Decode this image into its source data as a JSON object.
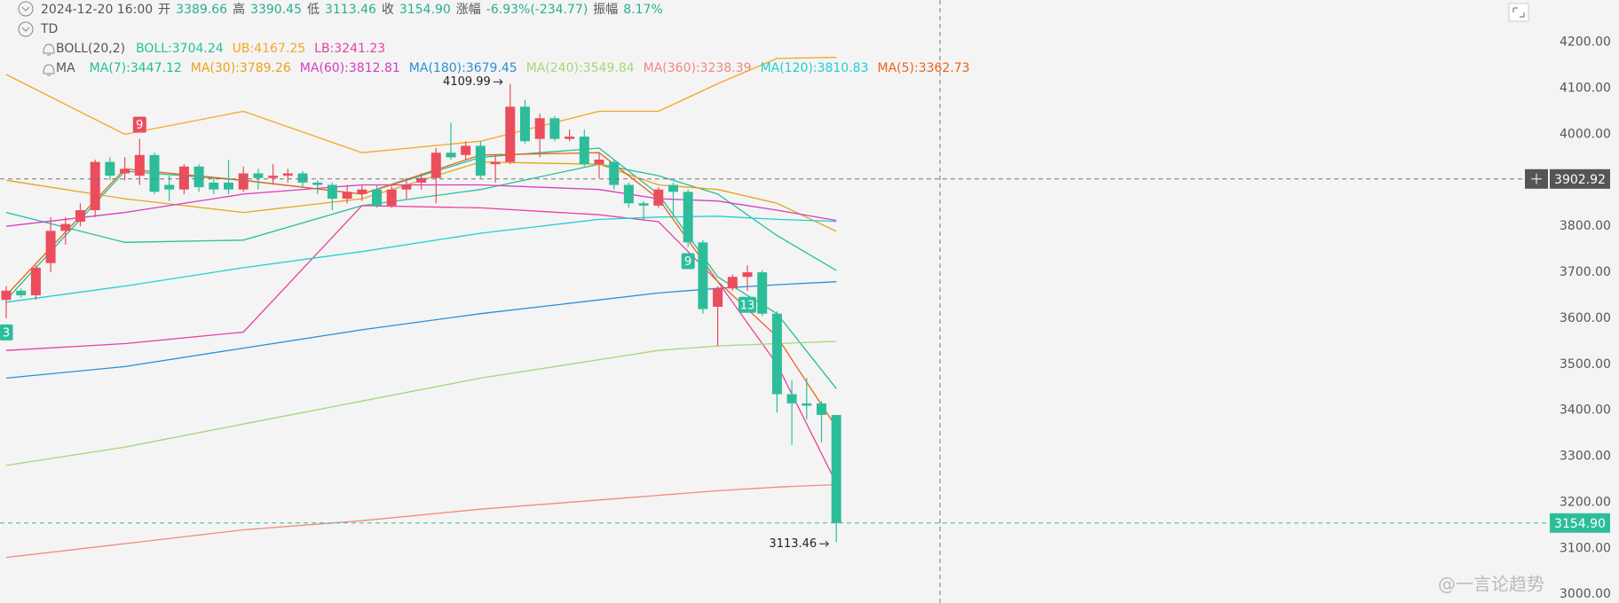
{
  "chart_data": {
    "type": "candlestick",
    "header": {
      "time": "2024-12-20 16:00",
      "items": [
        {
          "label": "开",
          "value": "3389.66"
        },
        {
          "label": "高",
          "value": "3390.45"
        },
        {
          "label": "低",
          "value": "3113.46"
        },
        {
          "label": "收",
          "value": "3154.90"
        },
        {
          "label": "涨幅",
          "value": "-6.93%(-234.77)"
        },
        {
          "label": "振幅",
          "value": "8.17%"
        }
      ],
      "value_color": "#26b08f"
    },
    "td_label": "TD",
    "boll_label": "BOLL(20,2)",
    "ma_label": "MA",
    "up_color": "#eb4d5c",
    "down_color": "#2ebd9b",
    "candles": {
      "open": [
        3640,
        3660,
        3650,
        3720,
        3790,
        3810,
        3835,
        3940,
        3915,
        3910,
        3955,
        3890,
        3880,
        3930,
        3895,
        3895,
        3880,
        3915,
        3905,
        3910,
        3915,
        3895,
        3890,
        3860,
        3870,
        3880,
        3845,
        3880,
        3895,
        3905,
        3960,
        3955,
        3975,
        3935,
        3940,
        4060,
        3990,
        4035,
        3990,
        3995,
        3935,
        3940,
        3890,
        3850,
        3845,
        3890,
        3875,
        3765,
        3625,
        3665,
        3690,
        3700,
        3610,
        3435,
        3415,
        3415,
        3389.66
      ],
      "high": [
        3670,
        3665,
        3715,
        3820,
        3820,
        3850,
        3945,
        3950,
        3950,
        3990,
        3960,
        3910,
        3935,
        3935,
        3905,
        3945,
        3930,
        3925,
        3935,
        3925,
        3920,
        3900,
        3895,
        3890,
        3890,
        3890,
        3890,
        3905,
        3915,
        3970,
        4025,
        3985,
        3985,
        3955,
        4109.99,
        4075,
        4045,
        4040,
        4010,
        4010,
        3960,
        3945,
        3895,
        3855,
        3885,
        3895,
        3880,
        3770,
        3670,
        3695,
        3715,
        3705,
        3615,
        3465,
        3470,
        3420,
        3390.45
      ],
      "low": [
        3600,
        3645,
        3640,
        3700,
        3760,
        3800,
        3820,
        3900,
        3900,
        3890,
        3870,
        3855,
        3870,
        3875,
        3870,
        3870,
        3875,
        3880,
        3890,
        3895,
        3885,
        3870,
        3835,
        3850,
        3855,
        3840,
        3840,
        3860,
        3880,
        3850,
        3945,
        3945,
        3905,
        3895,
        3935,
        3980,
        3950,
        3985,
        3985,
        3930,
        3905,
        3880,
        3840,
        3815,
        3840,
        3820,
        3755,
        3610,
        3540,
        3660,
        3660,
        3605,
        3395,
        3325,
        3380,
        3330,
        3113.46
      ],
      "close": [
        3660,
        3650,
        3710,
        3790,
        3805,
        3835,
        3940,
        3910,
        3925,
        3955,
        3875,
        3880,
        3930,
        3885,
        3880,
        3880,
        3915,
        3905,
        3910,
        3915,
        3895,
        3890,
        3860,
        3875,
        3880,
        3845,
        3880,
        3890,
        3905,
        3960,
        3950,
        3975,
        3910,
        3940,
        4060,
        3985,
        4035,
        3990,
        3995,
        3935,
        3945,
        3890,
        3850,
        3845,
        3880,
        3875,
        3765,
        3620,
        3665,
        3690,
        3700,
        3610,
        3435,
        3415,
        3410,
        3390,
        3154.9
      ]
    },
    "lines": [
      {
        "name": "BOLL:3704.24",
        "group": "boll",
        "color": "#26c09c",
        "x": [
          0,
          8,
          16,
          24,
          32,
          40,
          44,
          48,
          52,
          56
        ],
        "values": [
          3830,
          3765,
          3770,
          3845,
          3880,
          3935,
          3910,
          3870,
          3780,
          3704.24
        ]
      },
      {
        "name": "UB:4167.25",
        "group": "boll",
        "color": "#f5a623",
        "x": [
          0,
          8,
          16,
          24,
          32,
          40,
          44,
          48,
          52,
          56
        ],
        "values": [
          4130,
          4000,
          4050,
          3960,
          3985,
          4050,
          4050,
          4110,
          4165,
          4167.25
        ]
      },
      {
        "name": "LB:3241.23",
        "group": "boll",
        "color": "#e8419e",
        "x": [
          0,
          8,
          16,
          24,
          32,
          40,
          44,
          48,
          52,
          56
        ],
        "values": [
          3530,
          3545,
          3570,
          3845,
          3840,
          3825,
          3810,
          3680,
          3500,
          3241.23
        ]
      },
      {
        "name": "MA(7):3447.12",
        "group": "ma",
        "color": "#1fbf95",
        "x": [
          0,
          8,
          16,
          24,
          32,
          40,
          44,
          48,
          52,
          56
        ],
        "values": [
          3640,
          3920,
          3900,
          3870,
          3950,
          3970,
          3870,
          3690,
          3610,
          3447.12
        ]
      },
      {
        "name": "MA(30):3789.26",
        "group": "ma",
        "color": "#e8a317",
        "x": [
          0,
          8,
          16,
          24,
          32,
          40,
          44,
          48,
          52,
          56
        ],
        "values": [
          3900,
          3860,
          3830,
          3860,
          3940,
          3935,
          3890,
          3880,
          3850,
          3789.26
        ]
      },
      {
        "name": "MA(60):3812.81",
        "group": "ma",
        "color": "#d63cc0",
        "x": [
          0,
          8,
          16,
          24,
          32,
          40,
          44,
          48,
          52,
          56
        ],
        "values": [
          3800,
          3830,
          3870,
          3890,
          3890,
          3880,
          3860,
          3855,
          3835,
          3812.81
        ]
      },
      {
        "name": "MA(180):3679.45",
        "group": "ma",
        "color": "#2a8fd6",
        "x": [
          0,
          8,
          16,
          24,
          32,
          40,
          44,
          48,
          52,
          56
        ],
        "values": [
          3470,
          3495,
          3535,
          3575,
          3610,
          3640,
          3655,
          3665,
          3673,
          3679.45
        ]
      },
      {
        "name": "MA(240):3549.84",
        "group": "ma",
        "color": "#a6d67a",
        "x": [
          0,
          8,
          16,
          24,
          32,
          40,
          44,
          48,
          52,
          56
        ],
        "values": [
          3280,
          3320,
          3370,
          3420,
          3470,
          3510,
          3530,
          3540,
          3545,
          3549.84
        ]
      },
      {
        "name": "MA(360):3238.39",
        "group": "ma",
        "color": "#f08a80",
        "x": [
          0,
          8,
          16,
          24,
          32,
          40,
          44,
          48,
          52,
          56
        ],
        "values": [
          3080,
          3110,
          3140,
          3160,
          3185,
          3205,
          3215,
          3225,
          3233,
          3238.39
        ]
      },
      {
        "name": "MA(120):3810.83",
        "group": "ma",
        "color": "#1fd1d1",
        "x": [
          0,
          8,
          16,
          24,
          32,
          40,
          44,
          48,
          52,
          56
        ],
        "values": [
          3635,
          3670,
          3710,
          3745,
          3785,
          3815,
          3820,
          3822,
          3815,
          3810.83
        ]
      },
      {
        "name": "MA(5):3362.73",
        "group": "ma",
        "color": "#e8651a",
        "x": [
          0,
          8,
          16,
          24,
          32,
          40,
          44,
          48,
          52,
          56
        ],
        "values": [
          3650,
          3925,
          3900,
          3870,
          3955,
          3960,
          3860,
          3680,
          3560,
          3362.73
        ]
      }
    ],
    "ylim": [
      2981,
      4292
    ],
    "yticks": [
      {
        "value": 3000,
        "label": "3000.00"
      },
      {
        "value": 3100,
        "label": "3100.00"
      },
      {
        "value": 3200,
        "label": "3200.00"
      },
      {
        "value": 3300,
        "label": "3300.00"
      },
      {
        "value": 3400,
        "label": "3400.00"
      },
      {
        "value": 3500,
        "label": "3500.00"
      },
      {
        "value": 3600,
        "label": "3600.00"
      },
      {
        "value": 3700,
        "label": "3700.00"
      },
      {
        "value": 3800,
        "label": "3800.00"
      },
      {
        "value": 3900,
        "label": "3900.00"
      },
      {
        "value": 4000,
        "label": "4000.00"
      },
      {
        "value": 4100,
        "label": "4100.00"
      },
      {
        "value": 4200,
        "label": "4200.00"
      }
    ],
    "grid": false,
    "extremes": [
      {
        "index": 34,
        "field": "high",
        "label": "4109.99"
      },
      {
        "index": 56,
        "field": "low",
        "label": "3113.46"
      }
    ],
    "td_marks": [
      {
        "index": 9,
        "label": "9",
        "color": "#eb4d5c",
        "side": "above"
      },
      {
        "index": 46,
        "label": "9",
        "color": "#2ebd9b",
        "side": "below"
      },
      {
        "index": 50,
        "label": "13",
        "color": "#2ebd9b",
        "side": "below"
      },
      {
        "index": 0,
        "label": "3",
        "color": "#2ebd9b",
        "side": "below"
      }
    ],
    "price_tags": [
      {
        "value": 3902.92,
        "label": "3902.92",
        "style": "crosshair"
      },
      {
        "value": 3154.9,
        "label": "3154.90",
        "style": "last"
      }
    ],
    "watermark": "@一言论趋势"
  }
}
